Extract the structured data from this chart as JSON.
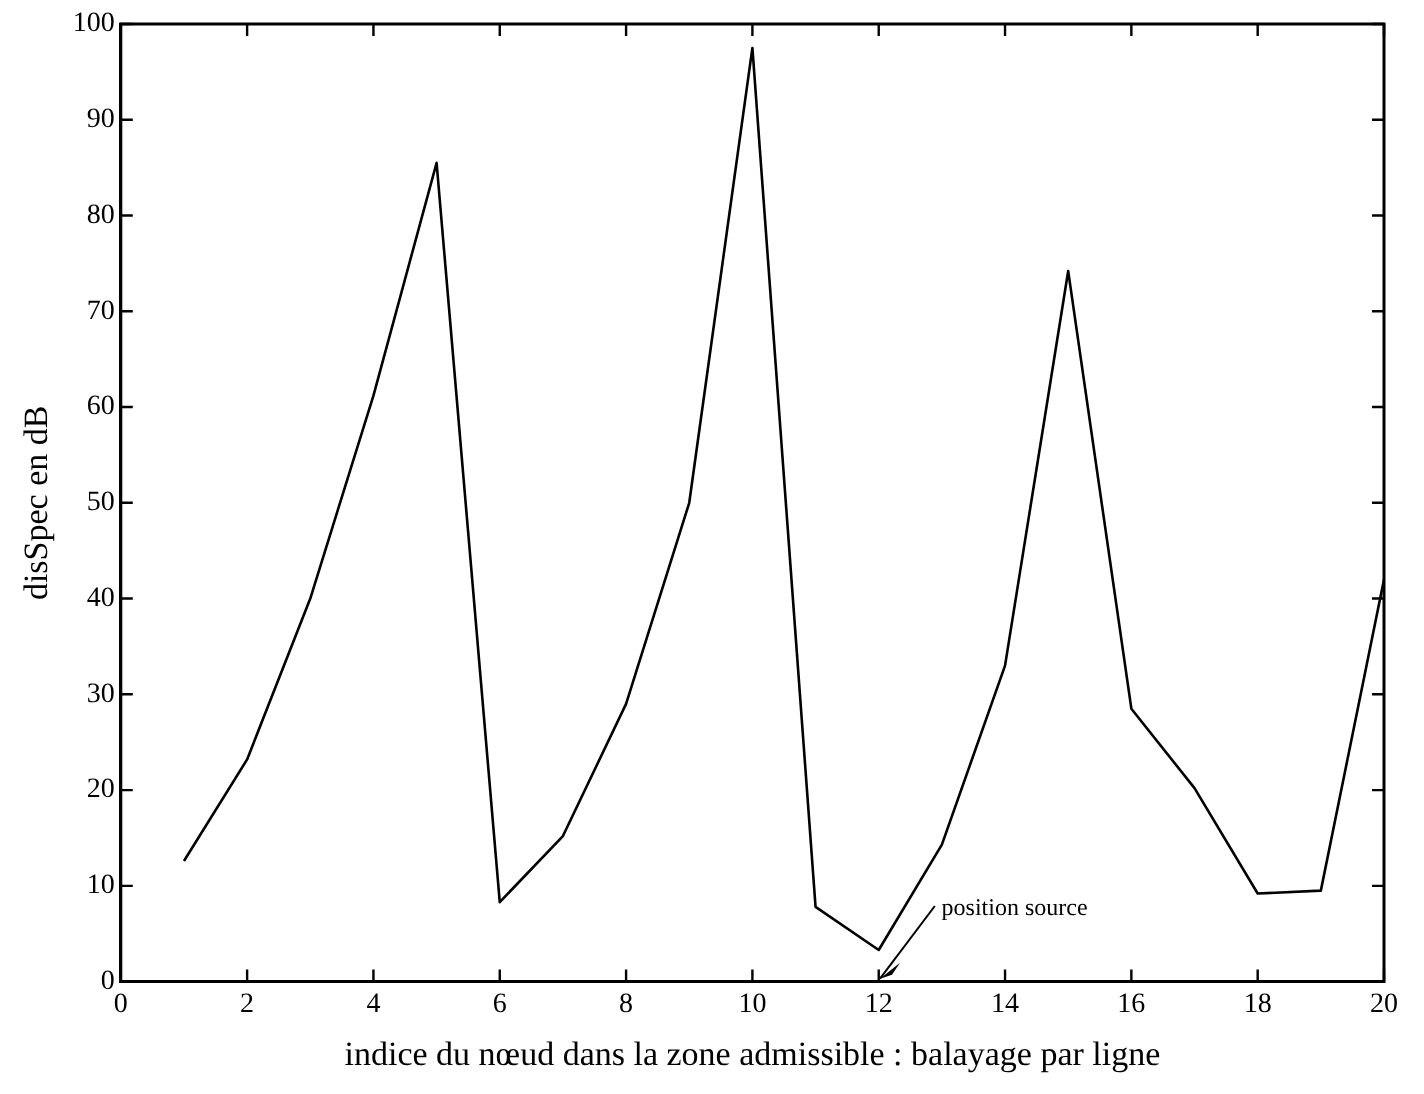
{
  "chart_data": {
    "type": "line",
    "xlabel": "indice du nœud dans la zone admissible : balayage par ligne",
    "ylabel": "disSpec en dB",
    "x": [
      1,
      2,
      3,
      4,
      5,
      6,
      7,
      8,
      9,
      10,
      11,
      12,
      13,
      14,
      15,
      16,
      17,
      18,
      19,
      20
    ],
    "series": [
      {
        "color": "#000000",
        "values": [
          12.6,
          23.2,
          40,
          61.2,
          85.5,
          8.3,
          15.2,
          29,
          50,
          97.5,
          7.8,
          3.3,
          14.3,
          33,
          74.2,
          28.5,
          20.2,
          9.2,
          9.5,
          42
        ]
      }
    ],
    "xlim": [
      0,
      20
    ],
    "xticks": [
      0,
      2,
      4,
      6,
      8,
      10,
      12,
      14,
      16,
      18,
      20
    ],
    "ylim": [
      0,
      100
    ],
    "yticks": [
      0,
      10,
      20,
      30,
      40,
      50,
      60,
      70,
      80,
      90,
      100
    ],
    "grid": false,
    "legend": false,
    "marker": "none",
    "line_style": "solid",
    "annotations": [
      "position source"
    ]
  }
}
